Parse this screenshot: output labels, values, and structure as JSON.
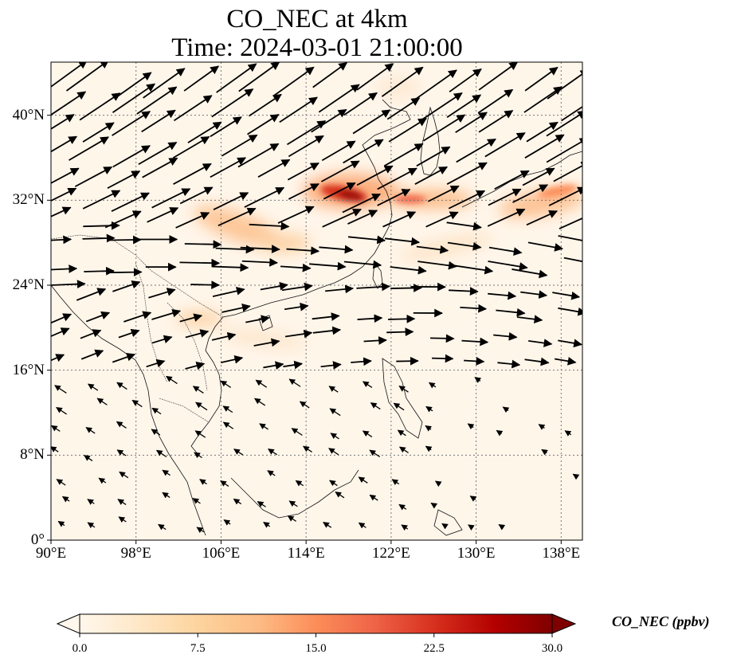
{
  "title": {
    "line1": "CO_NEC at 4km",
    "line2": "Time: 2024-03-01 21:00:00"
  },
  "map": {
    "projection": "PlateCarree",
    "lon_range": [
      90,
      140
    ],
    "lat_range": [
      0,
      45
    ],
    "gridlines": "dotted",
    "features": [
      "coastlines",
      "country borders",
      "wind vectors"
    ]
  },
  "y_ticks": [
    {
      "label": "40°N",
      "lat": 40
    },
    {
      "label": "32°N",
      "lat": 32
    },
    {
      "label": "24°N",
      "lat": 24
    },
    {
      "label": "16°N",
      "lat": 16
    },
    {
      "label": "8°N",
      "lat": 8
    },
    {
      "label": "0°",
      "lat": 0
    }
  ],
  "x_ticks": [
    {
      "label": "90°E",
      "lon": 90
    },
    {
      "label": "98°E",
      "lon": 98
    },
    {
      "label": "106°E",
      "lon": 106
    },
    {
      "label": "114°E",
      "lon": 114
    },
    {
      "label": "122°E",
      "lon": 122
    },
    {
      "label": "130°E",
      "lon": 130
    },
    {
      "label": "138°E",
      "lon": 138
    }
  ],
  "colorbar": {
    "label": "CO_NEC (ppbv)",
    "colormap": "OrRd",
    "range": [
      0,
      30
    ],
    "extend": "both",
    "ticks": [
      "0.0",
      "7.5",
      "15.0",
      "22.5",
      "30.0"
    ],
    "colors": [
      "#fff7ec",
      "#fee8c8",
      "#fdd49e",
      "#fdbb84",
      "#fc8d59",
      "#ef6548",
      "#d7301f",
      "#b30000",
      "#7f0000"
    ]
  },
  "co_plumes": [
    {
      "lon": 118.5,
      "lat": 32.5,
      "value": 30
    },
    {
      "lon": 124.5,
      "lat": 32.0,
      "value": 18
    },
    {
      "lon": 136,
      "lat": 32.5,
      "value": 14
    },
    {
      "lon": 107.5,
      "lat": 30.3,
      "value": 10
    },
    {
      "lon": 112.5,
      "lat": 28.3,
      "value": 8
    },
    {
      "lon": 124.5,
      "lat": 26.5,
      "value": 6
    },
    {
      "lon": 107.5,
      "lat": 20.0,
      "value": 9
    },
    {
      "lon": 115,
      "lat": 19.5,
      "value": 5
    }
  ]
}
